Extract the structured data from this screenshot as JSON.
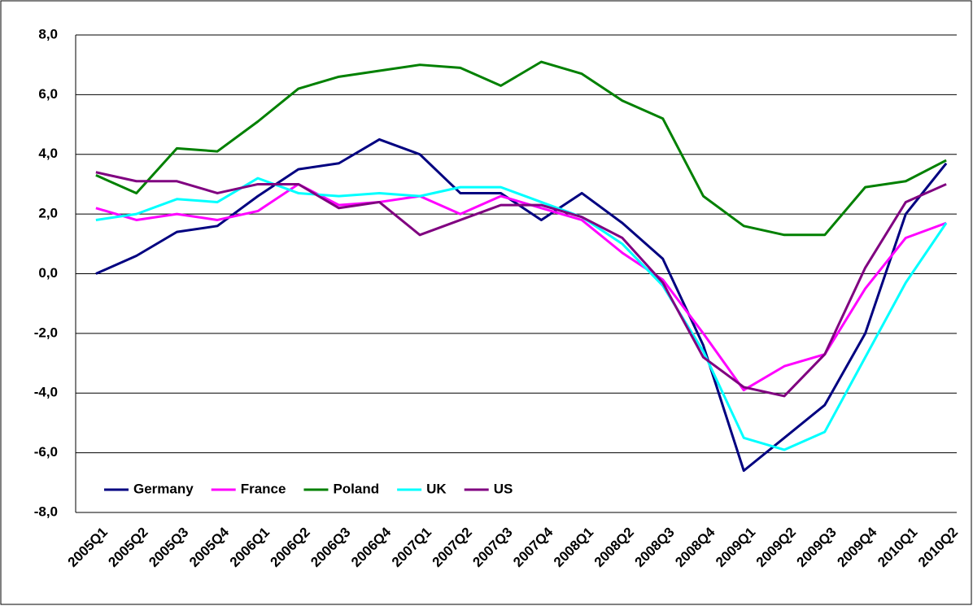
{
  "chart_data": {
    "type": "line",
    "categories": [
      "2005Q1",
      "2005Q2",
      "2005Q3",
      "2005Q4",
      "2006Q1",
      "2006Q2",
      "2006Q3",
      "2006Q4",
      "2007Q1",
      "2007Q2",
      "2007Q3",
      "2007Q4",
      "2008Q1",
      "2008Q2",
      "2008Q3",
      "2008Q4",
      "2009Q1",
      "2009Q2",
      "2009Q3",
      "2009Q4",
      "2010Q1",
      "2010Q2"
    ],
    "series": [
      {
        "name": "Germany",
        "color": "#000080",
        "values": [
          0.0,
          0.6,
          1.4,
          1.6,
          2.6,
          3.5,
          3.7,
          4.5,
          4.0,
          2.7,
          2.7,
          1.8,
          2.7,
          1.7,
          0.5,
          -2.4,
          -6.6,
          -5.5,
          -4.4,
          -2.0,
          2.0,
          3.7
        ]
      },
      {
        "name": "France",
        "color": "#ff00ff",
        "values": [
          2.2,
          1.8,
          2.0,
          1.8,
          2.1,
          3.0,
          2.3,
          2.4,
          2.6,
          2.0,
          2.6,
          2.2,
          1.8,
          0.7,
          -0.2,
          -2.0,
          -3.9,
          -3.1,
          -2.7,
          -0.5,
          1.2,
          1.7
        ]
      },
      {
        "name": "Poland",
        "color": "#008000",
        "values": [
          3.3,
          2.7,
          4.2,
          4.1,
          5.1,
          6.2,
          6.6,
          6.8,
          7.0,
          6.9,
          6.3,
          7.1,
          6.7,
          5.8,
          5.2,
          2.6,
          1.6,
          1.3,
          1.3,
          2.9,
          3.1,
          3.8
        ]
      },
      {
        "name": "UK",
        "color": "#00ffff",
        "values": [
          1.8,
          2.0,
          2.5,
          2.4,
          3.2,
          2.7,
          2.6,
          2.7,
          2.6,
          2.9,
          2.9,
          2.4,
          1.9,
          1.0,
          -0.4,
          -2.6,
          -5.5,
          -5.9,
          -5.3,
          -2.8,
          -0.3,
          1.7
        ]
      },
      {
        "name": "US",
        "color": "#800080",
        "values": [
          3.4,
          3.1,
          3.1,
          2.7,
          3.0,
          3.0,
          2.2,
          2.4,
          1.3,
          1.8,
          2.3,
          2.3,
          1.9,
          1.2,
          -0.3,
          -2.8,
          -3.8,
          -4.1,
          -2.7,
          0.2,
          2.4,
          3.0
        ]
      }
    ],
    "ylim": [
      -8,
      8
    ],
    "yticks": [
      {
        "value": -8,
        "label": "-8,0"
      },
      {
        "value": -6,
        "label": "-6,0"
      },
      {
        "value": -4,
        "label": "-4,0"
      },
      {
        "value": -2,
        "label": "-2,0"
      },
      {
        "value": 0,
        "label": "0,0"
      },
      {
        "value": 2,
        "label": "2,0"
      },
      {
        "value": 4,
        "label": "4,0"
      },
      {
        "value": 6,
        "label": "6,0"
      },
      {
        "value": 8,
        "label": "8,0"
      }
    ],
    "grid": true,
    "legend": "lower left"
  }
}
